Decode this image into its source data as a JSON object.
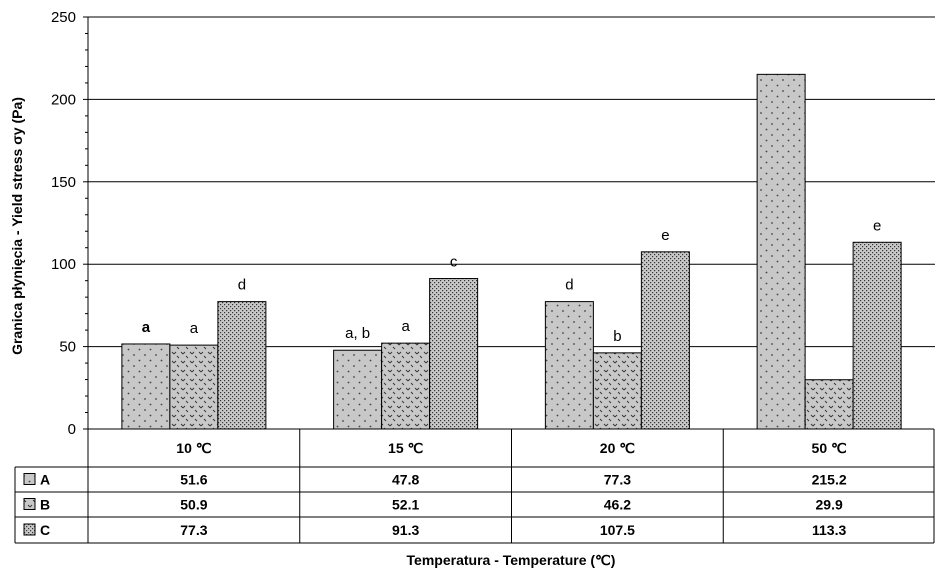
{
  "chart_data": {
    "type": "bar",
    "ylabel": "Granica płynięcia - Yield stress σy (Pa)",
    "xlabel": "Temperatura - Temperature (℃)",
    "ylim": [
      0,
      250
    ],
    "yticks": [
      "0",
      "50",
      "100",
      "150",
      "200",
      "250"
    ],
    "categories": [
      "10 ℃",
      "15 ℃",
      "20 ℃",
      "50 ℃"
    ],
    "grid": true,
    "legend": "data-table-rows",
    "series": [
      {
        "name": "A",
        "values": [
          51.6,
          47.8,
          77.3,
          215.2
        ],
        "value_labels": [
          "51.6",
          "47.8",
          "77.3",
          "215.2"
        ],
        "letters": [
          "a",
          "a, b",
          "d",
          ""
        ],
        "letter_bold": [
          true,
          false,
          false,
          false
        ]
      },
      {
        "name": "B",
        "values": [
          50.9,
          52.1,
          46.2,
          29.9
        ],
        "value_labels": [
          "50.9",
          "52.1",
          "46.2",
          "29.9"
        ],
        "letters": [
          "a",
          "a",
          "b",
          ""
        ],
        "letter_bold": [
          false,
          false,
          false,
          false
        ]
      },
      {
        "name": "C",
        "values": [
          77.3,
          91.3,
          107.5,
          113.3
        ],
        "value_labels": [
          "77.3",
          "91.3",
          "107.5",
          "113.3"
        ],
        "letters": [
          "d",
          "c",
          "e",
          "e"
        ],
        "letter_bold": [
          false,
          false,
          false,
          false
        ]
      }
    ],
    "colors": {
      "bar_fill": "#c8c8c8",
      "grid": "#000000",
      "text": "#000000"
    }
  }
}
